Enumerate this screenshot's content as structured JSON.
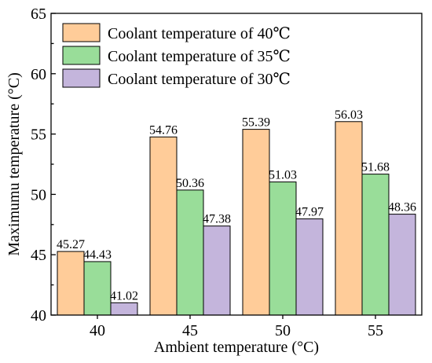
{
  "chart_data": {
    "type": "bar",
    "title": "",
    "xlabel": "Ambient temperature (°C)",
    "ylabel": "Maximumu temperature (°C)",
    "categories": [
      "40",
      "45",
      "50",
      "55"
    ],
    "ylim": [
      40,
      65
    ],
    "yticks": [
      "40",
      "45",
      "50",
      "55",
      "60",
      "65"
    ],
    "legend_position": "top-left",
    "series": [
      {
        "name": "Coolant temperature of 40℃",
        "color": "#FFCC99",
        "values": [
          45.27,
          54.76,
          55.39,
          56.03
        ],
        "labels": [
          "45.27",
          "54.76",
          "55.39",
          "56.03"
        ]
      },
      {
        "name": "Coolant temperature of 35℃",
        "color": "#99DD99",
        "values": [
          44.43,
          50.36,
          51.03,
          51.68
        ],
        "labels": [
          "44.43",
          "50.36",
          "51.03",
          "51.68"
        ]
      },
      {
        "name": "Coolant temperature of 30℃",
        "color": "#C4B5DC",
        "values": [
          41.02,
          47.38,
          47.97,
          48.36
        ],
        "labels": [
          "41.02",
          "47.38",
          "47.97",
          "48.36"
        ]
      }
    ]
  }
}
